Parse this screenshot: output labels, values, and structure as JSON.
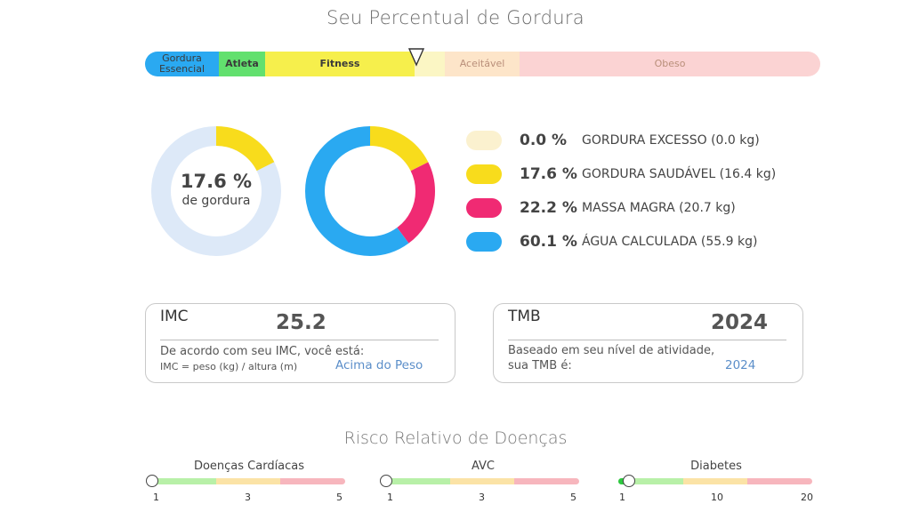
{
  "title": "Seu Percentual de Gordura",
  "fat_bar": {
    "segments": [
      {
        "label": "Gordura Essencial",
        "color": "#2aa9f1"
      },
      {
        "label": "Atleta",
        "color": "#62e06e"
      },
      {
        "label": "Fitness",
        "color": "#f6ef4c"
      },
      {
        "label": "",
        "color": "#fbf6c4"
      },
      {
        "label": "Aceitável",
        "color": "#fde5c9"
      },
      {
        "label": "Obeso",
        "color": "#fbd3d3"
      }
    ]
  },
  "donut_main": {
    "value_text": "17.6 %",
    "sub_text": "de gordura",
    "fraction": 0.176,
    "color": "#f8dc1c",
    "track_color": "#dde9f8"
  },
  "composition": [
    {
      "percent": "0.0 %",
      "label": "GORDURA EXCESSO (0.0 kg)",
      "value": 0.0,
      "color": "#fbf1cf"
    },
    {
      "percent": "17.6 %",
      "label": "GORDURA SAUDÁVEL (16.4 kg)",
      "value": 17.6,
      "color": "#f8dc1c"
    },
    {
      "percent": "22.2 %",
      "label": "MASSA MAGRA (20.7 kg)",
      "value": 22.2,
      "color": "#f02a73"
    },
    {
      "percent": "60.1 %",
      "label": "ÁGUA CALCULADA (55.9 kg)",
      "value": 60.1,
      "color": "#2aa9f1"
    }
  ],
  "imc": {
    "title": "IMC",
    "value": "25.2",
    "line1": "De acordo com seu IMC, você está:",
    "line2": "IMC = peso (kg) / altura (m)",
    "status": "Acima do Peso"
  },
  "tmb": {
    "title": "TMB",
    "value": "2024",
    "line1": "Baseado em seu nível de atividade,",
    "line2": "sua TMB é:",
    "result": "2024"
  },
  "risk": {
    "title": "Risco Relativo de Doenças",
    "colors": [
      "#b8f0a8",
      "#fbe3a6",
      "#f7b6bd"
    ],
    "items": [
      {
        "name": "Doenças Cardíacas",
        "ticks": [
          "1",
          "3",
          "5"
        ],
        "level": 0.0
      },
      {
        "name": "AVC",
        "ticks": [
          "1",
          "3",
          "5"
        ],
        "level": 0.0
      },
      {
        "name": "Diabetes",
        "ticks": [
          "1",
          "10",
          "20"
        ],
        "level": 0.05
      }
    ]
  }
}
